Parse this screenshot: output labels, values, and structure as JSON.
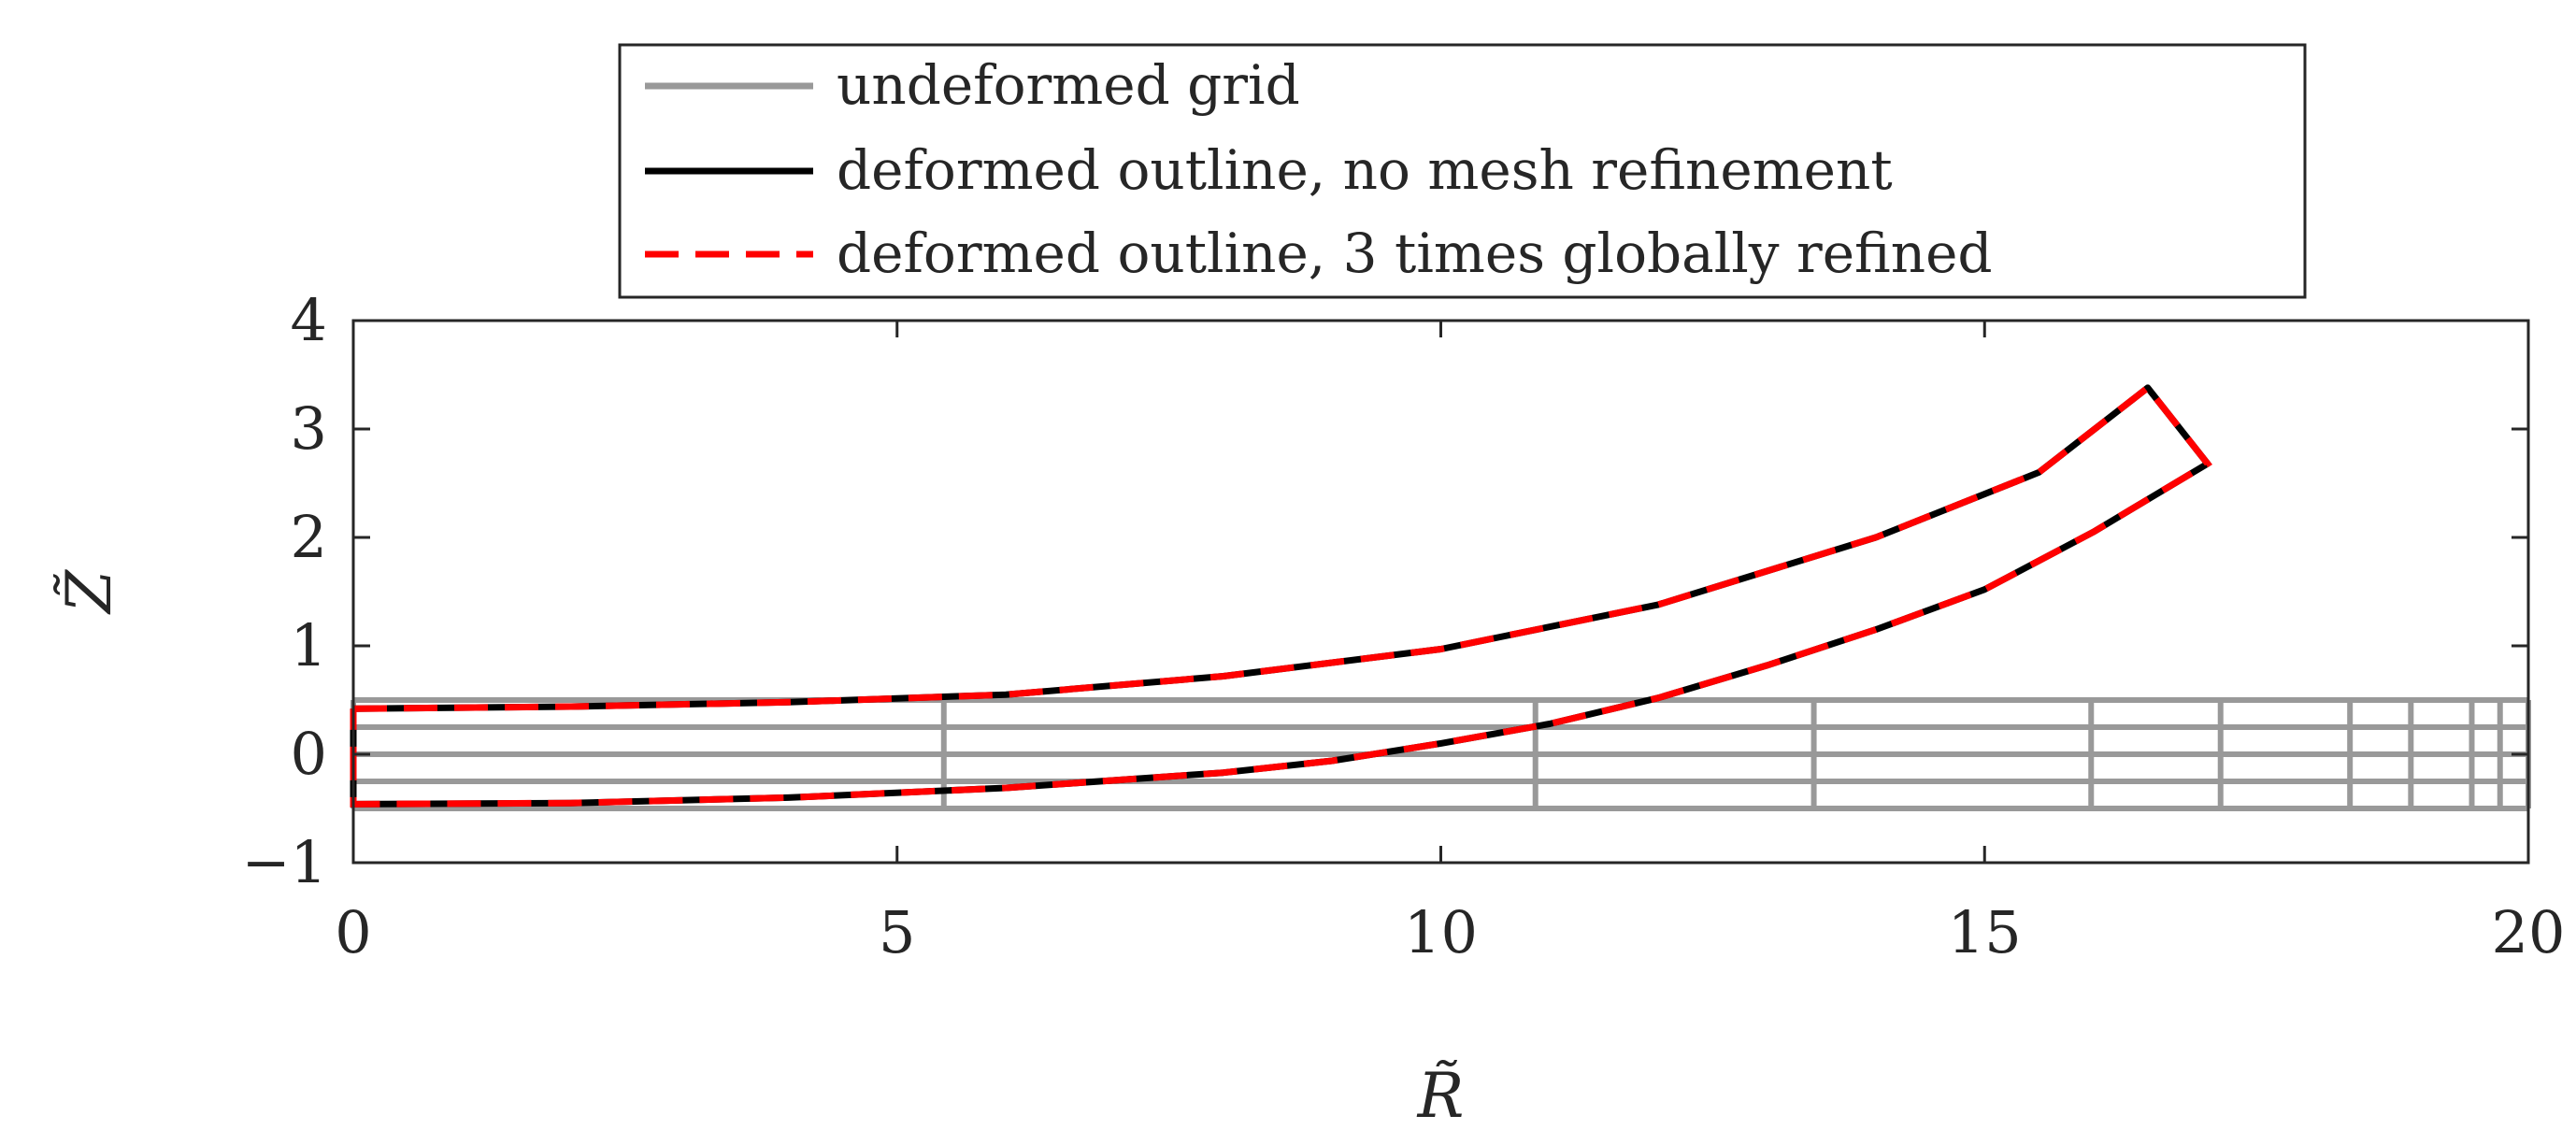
{
  "chart_data": {
    "type": "line",
    "xlabel": "R̃",
    "ylabel": "Z̃",
    "xlim": [
      0,
      20
    ],
    "ylim": [
      -1,
      4
    ],
    "xticks": [
      0,
      5,
      10,
      15,
      20
    ],
    "xtick_labels": [
      "0",
      "5",
      "10",
      "15",
      "20"
    ],
    "yticks": [
      -1,
      0,
      1,
      2,
      3,
      4
    ],
    "ytick_labels": [
      "−1",
      "0",
      "1",
      "2",
      "3",
      "4"
    ],
    "grid": false,
    "legend": {
      "placement": "top-outside",
      "entries": [
        {
          "label": "undeformed grid",
          "color": "#999999",
          "style": "solid"
        },
        {
          "label": "deformed outline, no mesh refinement",
          "color": "#000000",
          "style": "solid"
        },
        {
          "label": "deformed outline, 3 times globally refined",
          "color": "#ff0000",
          "style": "dashed"
        }
      ]
    },
    "series": [
      {
        "name": "undeformed grid",
        "color": "#999999",
        "style": "solid",
        "horizontal_lines_y": [
          -0.5,
          -0.25,
          0,
          0.25,
          0.5
        ],
        "horizontal_lines_x": [
          0,
          20
        ],
        "vertical_lines_x": [
          0,
          5.43,
          10.87,
          13.43,
          15.98,
          17.17,
          18.36,
          18.92,
          19.48,
          19.74,
          20.0
        ],
        "vertical_lines_y": [
          -0.5,
          0.5
        ]
      },
      {
        "name": "deformed outline, no mesh refinement",
        "color": "#000000",
        "style": "solid",
        "outline": [
          [
            0,
            0.42
          ],
          [
            2,
            0.44
          ],
          [
            4,
            0.48
          ],
          [
            6,
            0.55
          ],
          [
            8,
            0.72
          ],
          [
            10,
            0.97
          ],
          [
            12,
            1.38
          ],
          [
            14,
            2.0
          ],
          [
            15.5,
            2.6
          ],
          [
            16.5,
            3.38
          ],
          [
            17.05,
            2.68
          ],
          [
            16,
            2.05
          ],
          [
            15,
            1.52
          ],
          [
            14,
            1.15
          ],
          [
            13,
            0.82
          ],
          [
            12,
            0.52
          ],
          [
            11,
            0.28
          ],
          [
            10,
            0.1
          ],
          [
            9,
            -0.06
          ],
          [
            8,
            -0.17
          ],
          [
            6,
            -0.31
          ],
          [
            4,
            -0.4
          ],
          [
            2,
            -0.45
          ],
          [
            0,
            -0.46
          ],
          [
            0,
            0.42
          ]
        ]
      },
      {
        "name": "deformed outline, 3 times globally refined",
        "color": "#ff0000",
        "style": "dashed",
        "outline": [
          [
            0,
            0.42
          ],
          [
            2,
            0.44
          ],
          [
            4,
            0.48
          ],
          [
            6,
            0.55
          ],
          [
            8,
            0.72
          ],
          [
            10,
            0.97
          ],
          [
            12,
            1.38
          ],
          [
            14,
            2.0
          ],
          [
            15.5,
            2.6
          ],
          [
            16.5,
            3.38
          ],
          [
            17.05,
            2.68
          ],
          [
            16,
            2.05
          ],
          [
            15,
            1.52
          ],
          [
            14,
            1.15
          ],
          [
            13,
            0.82
          ],
          [
            12,
            0.52
          ],
          [
            11,
            0.28
          ],
          [
            10,
            0.1
          ],
          [
            9,
            -0.06
          ],
          [
            8,
            -0.17
          ],
          [
            6,
            -0.31
          ],
          [
            4,
            -0.4
          ],
          [
            2,
            -0.45
          ],
          [
            0,
            -0.46
          ],
          [
            0,
            0.42
          ]
        ]
      }
    ]
  }
}
